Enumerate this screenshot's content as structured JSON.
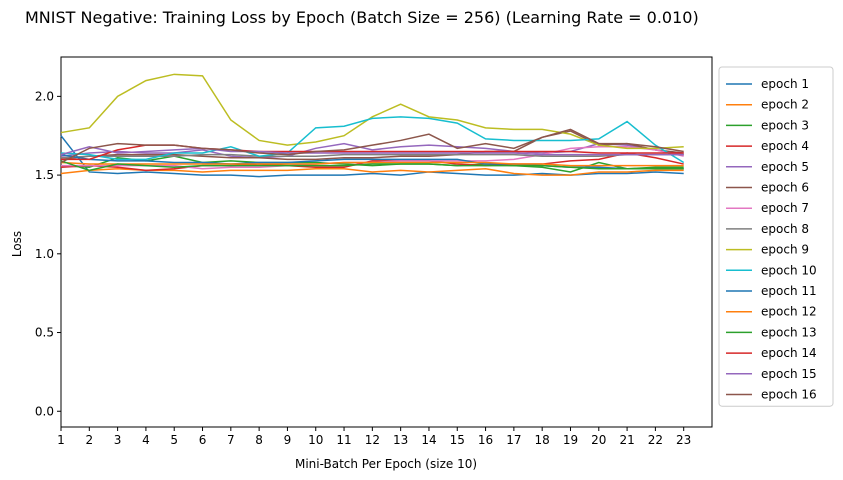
{
  "chart_data": {
    "type": "line",
    "title": "MNIST Negative: Training Loss by Epoch (Batch Size = 256) (Learning Rate = 0.010)",
    "xlabel": "Mini-Batch Per Epoch (size 10)",
    "ylabel": "Loss",
    "xlim": [
      1,
      24
    ],
    "ylim": [
      -0.1,
      2.25
    ],
    "xticks": [
      1,
      2,
      3,
      4,
      5,
      6,
      7,
      8,
      9,
      10,
      11,
      12,
      13,
      14,
      15,
      16,
      17,
      18,
      19,
      20,
      21,
      22,
      23
    ],
    "yticks": [
      0.0,
      0.5,
      1.0,
      1.5,
      2.0
    ],
    "ytick_labels": [
      "0.0",
      "0.5",
      "1.0",
      "1.5",
      "2.0"
    ],
    "grid": false,
    "legend_position": "outside-right",
    "x": [
      1,
      2,
      3,
      4,
      5,
      6,
      7,
      8,
      9,
      10,
      11,
      12,
      13,
      14,
      15,
      16,
      17,
      18,
      19,
      20,
      21,
      22,
      23
    ],
    "series": [
      {
        "name": "epoch 1",
        "color": "#1f77b4",
        "values": [
          1.75,
          1.52,
          1.51,
          1.52,
          1.51,
          1.5,
          1.5,
          1.49,
          1.5,
          1.5,
          1.5,
          1.51,
          1.5,
          1.52,
          1.51,
          1.5,
          1.5,
          1.51,
          1.5,
          1.51,
          1.51,
          1.52,
          1.51
        ]
      },
      {
        "name": "epoch 2",
        "color": "#ff7f0e",
        "values": [
          1.51,
          1.53,
          1.54,
          1.53,
          1.53,
          1.52,
          1.53,
          1.53,
          1.53,
          1.54,
          1.54,
          1.52,
          1.53,
          1.52,
          1.53,
          1.54,
          1.51,
          1.5,
          1.5,
          1.52,
          1.52,
          1.53,
          1.53
        ]
      },
      {
        "name": "epoch 3",
        "color": "#2ca02c",
        "values": [
          1.56,
          1.55,
          1.61,
          1.59,
          1.62,
          1.58,
          1.59,
          1.58,
          1.58,
          1.58,
          1.57,
          1.56,
          1.57,
          1.57,
          1.56,
          1.57,
          1.56,
          1.55,
          1.52,
          1.58,
          1.54,
          1.55,
          1.55
        ]
      },
      {
        "name": "epoch 4",
        "color": "#d62728",
        "values": [
          1.55,
          1.56,
          1.55,
          1.53,
          1.54,
          1.56,
          1.56,
          1.57,
          1.56,
          1.55,
          1.55,
          1.59,
          1.59,
          1.59,
          1.57,
          1.56,
          1.57,
          1.57,
          1.59,
          1.6,
          1.64,
          1.61,
          1.57
        ]
      },
      {
        "name": "epoch 5",
        "color": "#9467bd",
        "values": [
          1.62,
          1.64,
          1.65,
          1.64,
          1.64,
          1.66,
          1.62,
          1.61,
          1.62,
          1.67,
          1.7,
          1.66,
          1.68,
          1.69,
          1.68,
          1.67,
          1.65,
          1.64,
          1.65,
          1.7,
          1.69,
          1.66,
          1.63
        ]
      },
      {
        "name": "epoch 6",
        "color": "#8c564b",
        "values": [
          1.6,
          1.62,
          1.63,
          1.63,
          1.63,
          1.62,
          1.61,
          1.61,
          1.6,
          1.6,
          1.61,
          1.61,
          1.62,
          1.62,
          1.63,
          1.65,
          1.65,
          1.74,
          1.78,
          1.69,
          1.7,
          1.66,
          1.64
        ]
      },
      {
        "name": "epoch 7",
        "color": "#e377c2",
        "values": [
          1.56,
          1.56,
          1.56,
          1.56,
          1.56,
          1.54,
          1.55,
          1.55,
          1.56,
          1.57,
          1.58,
          1.58,
          1.59,
          1.59,
          1.59,
          1.59,
          1.6,
          1.63,
          1.67,
          1.68,
          1.68,
          1.66,
          1.62
        ]
      },
      {
        "name": "epoch 8",
        "color": "#7f7f7f",
        "values": [
          1.61,
          1.62,
          1.62,
          1.62,
          1.62,
          1.63,
          1.63,
          1.62,
          1.62,
          1.62,
          1.63,
          1.63,
          1.63,
          1.63,
          1.63,
          1.63,
          1.63,
          1.62,
          1.62,
          1.62,
          1.63,
          1.63,
          1.63
        ]
      },
      {
        "name": "epoch 9",
        "color": "#bcbd22",
        "values": [
          1.77,
          1.8,
          2.0,
          2.1,
          2.14,
          2.13,
          1.85,
          1.72,
          1.69,
          1.71,
          1.75,
          1.87,
          1.95,
          1.87,
          1.85,
          1.8,
          1.79,
          1.79,
          1.76,
          1.69,
          1.67,
          1.67,
          1.68
        ]
      },
      {
        "name": "epoch 10",
        "color": "#17becf",
        "values": [
          1.64,
          1.63,
          1.6,
          1.6,
          1.64,
          1.64,
          1.68,
          1.62,
          1.64,
          1.8,
          1.81,
          1.86,
          1.87,
          1.86,
          1.83,
          1.73,
          1.72,
          1.72,
          1.72,
          1.73,
          1.84,
          1.69,
          1.58
        ]
      },
      {
        "name": "epoch 11",
        "color": "#1f77b4",
        "values": [
          1.63,
          1.6,
          1.59,
          1.59,
          1.58,
          1.58,
          1.57,
          1.58,
          1.58,
          1.59,
          1.6,
          1.6,
          1.6,
          1.6,
          1.6,
          1.57,
          1.57,
          1.56,
          1.55,
          1.55,
          1.54,
          1.54,
          1.54
        ]
      },
      {
        "name": "epoch 12",
        "color": "#ff7f0e",
        "values": [
          1.58,
          1.57,
          1.57,
          1.57,
          1.57,
          1.57,
          1.57,
          1.57,
          1.57,
          1.57,
          1.58,
          1.58,
          1.58,
          1.58,
          1.58,
          1.58,
          1.57,
          1.57,
          1.56,
          1.56,
          1.56,
          1.56,
          1.56
        ]
      },
      {
        "name": "epoch 13",
        "color": "#2ca02c",
        "values": [
          1.59,
          1.53,
          1.57,
          1.56,
          1.55,
          1.56,
          1.56,
          1.56,
          1.56,
          1.56,
          1.56,
          1.57,
          1.57,
          1.57,
          1.56,
          1.56,
          1.56,
          1.56,
          1.55,
          1.54,
          1.54,
          1.54,
          1.54
        ]
      },
      {
        "name": "epoch 14",
        "color": "#d62728",
        "values": [
          1.6,
          1.6,
          1.66,
          1.69,
          1.69,
          1.67,
          1.66,
          1.65,
          1.65,
          1.65,
          1.65,
          1.65,
          1.65,
          1.65,
          1.65,
          1.65,
          1.65,
          1.65,
          1.65,
          1.64,
          1.64,
          1.64,
          1.64
        ]
      },
      {
        "name": "epoch 15",
        "color": "#9467bd",
        "values": [
          1.63,
          1.68,
          1.64,
          1.65,
          1.66,
          1.67,
          1.65,
          1.65,
          1.64,
          1.64,
          1.64,
          1.64,
          1.64,
          1.64,
          1.64,
          1.64,
          1.64,
          1.63,
          1.63,
          1.63,
          1.63,
          1.63,
          1.63
        ]
      },
      {
        "name": "epoch 16",
        "color": "#8c564b",
        "values": [
          1.58,
          1.67,
          1.7,
          1.69,
          1.69,
          1.67,
          1.66,
          1.64,
          1.63,
          1.65,
          1.66,
          1.69,
          1.72,
          1.76,
          1.67,
          1.7,
          1.67,
          1.74,
          1.79,
          1.7,
          1.7,
          1.68,
          1.65
        ]
      }
    ]
  }
}
